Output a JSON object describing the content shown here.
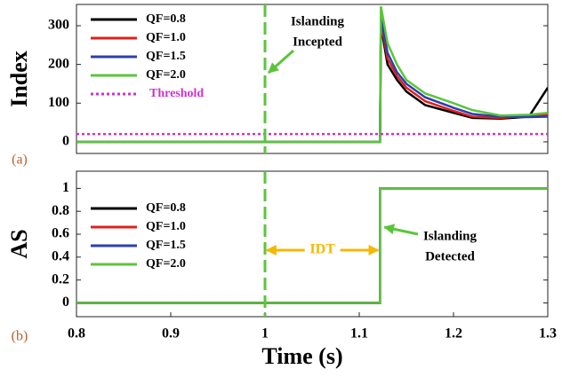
{
  "chart_data": [
    {
      "type": "line",
      "ylabel": "Index",
      "panel": "(a)",
      "x": [
        0.8,
        1.0,
        1.122,
        1.123,
        1.13,
        1.14,
        1.15,
        1.17,
        1.2,
        1.22,
        1.25,
        1.28,
        1.3
      ],
      "series": [
        {
          "name": "QF=0.8",
          "color": "#000000",
          "values": [
            0,
            0,
            0,
            300,
            200,
            160,
            130,
            95,
            75,
            62,
            60,
            65,
            140
          ]
        },
        {
          "name": "QF=1.0",
          "color": "#e0201b",
          "values": [
            0,
            0,
            0,
            310,
            215,
            170,
            140,
            105,
            80,
            65,
            62,
            68,
            70
          ]
        },
        {
          "name": "QF=1.5",
          "color": "#2b3fb0",
          "values": [
            0,
            0,
            0,
            320,
            230,
            180,
            150,
            115,
            88,
            72,
            65,
            64,
            65
          ]
        },
        {
          "name": "QF=2.0",
          "color": "#5cc43c",
          "values": [
            0,
            0,
            0,
            350,
            255,
            200,
            160,
            125,
            100,
            82,
            68,
            70,
            75
          ]
        },
        {
          "name": "Threshold",
          "color": "#cc33cc",
          "dashed": true,
          "values": [
            20,
            20,
            20,
            20,
            20,
            20,
            20,
            20,
            20,
            20,
            20,
            20,
            20
          ]
        }
      ],
      "xlim": [
        0.8,
        1.3
      ],
      "ylim": [
        -30,
        355
      ],
      "yticks": [
        0,
        100,
        200,
        300
      ],
      "vline": 1,
      "annotation": [
        "Islanding",
        "Incepted"
      ],
      "legend": "upper left"
    },
    {
      "type": "line",
      "ylabel": "AS",
      "xlabel": "Time (s)",
      "panel": "(b)",
      "x": [
        0.8,
        1.122,
        1.122,
        1.3
      ],
      "series": [
        {
          "name": "QF=0.8",
          "color": "#000000",
          "values": [
            0,
            0,
            1,
            1
          ]
        },
        {
          "name": "QF=1.0",
          "color": "#e0201b",
          "values": [
            0,
            0,
            1,
            1
          ]
        },
        {
          "name": "QF=1.5",
          "color": "#2b3fb0",
          "values": [
            0,
            0,
            1,
            1
          ]
        },
        {
          "name": "QF=2.0",
          "color": "#5cc43c",
          "values": [
            0,
            0,
            1,
            1
          ]
        }
      ],
      "xlim": [
        0.8,
        1.3
      ],
      "ylim": [
        -0.12,
        1.15
      ],
      "xticks": [
        0.8,
        0.9,
        1,
        1.1,
        1.2,
        1.3
      ],
      "yticks": [
        0,
        0.2,
        0.4,
        0.6,
        0.8,
        1
      ],
      "vline": 1,
      "annotation": [
        "Islanding",
        "Detected"
      ],
      "interval_label": "IDT",
      "legend": "center left"
    }
  ]
}
